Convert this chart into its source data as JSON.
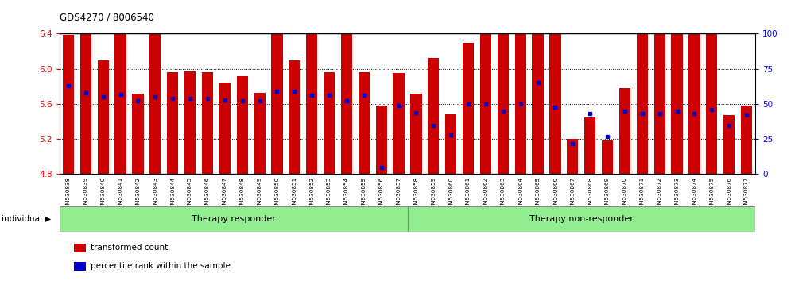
{
  "title": "GDS4270 / 8006540",
  "ylim_left": [
    4.8,
    6.4
  ],
  "ylim_right": [
    0,
    100
  ],
  "yticks_left": [
    4.8,
    5.2,
    5.6,
    6.0,
    6.4
  ],
  "yticks_right": [
    0,
    25,
    50,
    75,
    100
  ],
  "samples": [
    "GSM530838",
    "GSM530839",
    "GSM530840",
    "GSM530841",
    "GSM530842",
    "GSM530843",
    "GSM530844",
    "GSM530845",
    "GSM530846",
    "GSM530847",
    "GSM530848",
    "GSM530849",
    "GSM530850",
    "GSM530851",
    "GSM530852",
    "GSM530853",
    "GSM530854",
    "GSM530855",
    "GSM530856",
    "GSM530857",
    "GSM530858",
    "GSM530859",
    "GSM530860",
    "GSM530861",
    "GSM530862",
    "GSM530863",
    "GSM530864",
    "GSM530865",
    "GSM530866",
    "GSM530867",
    "GSM530868",
    "GSM530869",
    "GSM530870",
    "GSM530871",
    "GSM530872",
    "GSM530873",
    "GSM530874",
    "GSM530875",
    "GSM530876",
    "GSM530877"
  ],
  "bar_values": [
    6.39,
    6.43,
    6.1,
    6.42,
    5.72,
    6.42,
    5.96,
    5.97,
    5.96,
    5.84,
    5.92,
    5.73,
    6.65,
    6.1,
    6.43,
    5.96,
    6.43,
    5.96,
    5.58,
    5.95,
    5.72,
    6.12,
    5.48,
    6.3,
    6.43,
    6.63,
    6.43,
    6.63,
    6.43,
    5.2,
    5.45,
    5.18,
    5.78,
    6.63,
    6.63,
    6.63,
    6.63,
    6.7,
    5.47,
    5.58
  ],
  "percentile_values": [
    63,
    58,
    55,
    57,
    52,
    55,
    54,
    54,
    54,
    53,
    52,
    52,
    59,
    59,
    56,
    56,
    52,
    56,
    5,
    49,
    44,
    35,
    28,
    50,
    50,
    45,
    50,
    65,
    48,
    22,
    43,
    27,
    45,
    43,
    43,
    45,
    43,
    46,
    35,
    42
  ],
  "group1_count": 20,
  "group1_label": "Therapy responder",
  "group2_label": "Therapy non-responder",
  "bar_color": "#cc0000",
  "dot_color": "#0000cc",
  "background_color": "#ffffff",
  "tick_area_color": "#c8c8c8",
  "group_bg_color": "#90ee90",
  "legend_bar_label": "transformed count",
  "legend_dot_label": "percentile rank within the sample",
  "individual_label": "individual"
}
